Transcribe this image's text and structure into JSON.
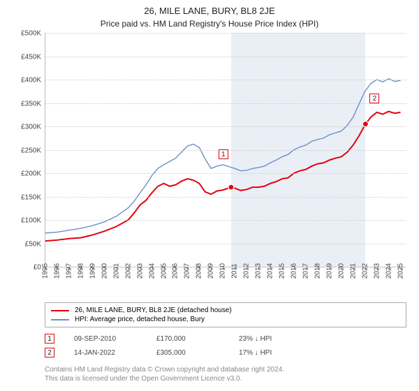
{
  "title": "26, MILE LANE, BURY, BL8 2JE",
  "subtitle": "Price paid vs. HM Land Registry's House Price Index (HPI)",
  "chart": {
    "type": "line",
    "x_min": 1995.0,
    "x_max": 2025.5,
    "y_min": 0,
    "y_max": 500000,
    "y_ticks": [
      0,
      50000,
      100000,
      150000,
      200000,
      250000,
      300000,
      350000,
      400000,
      450000,
      500000
    ],
    "y_tick_labels": [
      "£0",
      "£50K",
      "£100K",
      "£150K",
      "£200K",
      "£250K",
      "£300K",
      "£350K",
      "£400K",
      "£450K",
      "£500K"
    ],
    "x_ticks": [
      1995,
      1996,
      1997,
      1998,
      1999,
      2000,
      2001,
      2002,
      2003,
      2004,
      2005,
      2006,
      2007,
      2008,
      2009,
      2010,
      2011,
      2012,
      2013,
      2014,
      2015,
      2016,
      2017,
      2018,
      2019,
      2020,
      2021,
      2022,
      2023,
      2024,
      2025
    ],
    "shade_from": 2010.69,
    "shade_to": 2022.04,
    "grid_color": "#cccccc",
    "background_color": "#ffffff",
    "shade_color": "#e8edf5",
    "label_fontsize": 10,
    "series": {
      "price_paid": {
        "label": "26, MILE LANE, BURY, BL8 2JE (detached house)",
        "color": "#e3000f",
        "width": 2,
        "points": [
          [
            1995.0,
            55000
          ],
          [
            1996.0,
            57000
          ],
          [
            1997.0,
            60000
          ],
          [
            1998.0,
            62000
          ],
          [
            1999.0,
            68000
          ],
          [
            2000.0,
            76000
          ],
          [
            2001.0,
            86000
          ],
          [
            2002.0,
            100000
          ],
          [
            2002.5,
            115000
          ],
          [
            2003.0,
            132000
          ],
          [
            2003.5,
            142000
          ],
          [
            2004.0,
            158000
          ],
          [
            2004.5,
            172000
          ],
          [
            2005.0,
            178000
          ],
          [
            2005.5,
            172000
          ],
          [
            2006.0,
            175000
          ],
          [
            2006.5,
            183000
          ],
          [
            2007.0,
            188000
          ],
          [
            2007.5,
            185000
          ],
          [
            2008.0,
            178000
          ],
          [
            2008.5,
            160000
          ],
          [
            2009.0,
            155000
          ],
          [
            2009.5,
            162000
          ],
          [
            2010.0,
            164000
          ],
          [
            2010.69,
            170000
          ],
          [
            2011.0,
            168000
          ],
          [
            2011.5,
            163000
          ],
          [
            2012.0,
            165000
          ],
          [
            2012.5,
            170000
          ],
          [
            2013.0,
            170000
          ],
          [
            2013.5,
            172000
          ],
          [
            2014.0,
            178000
          ],
          [
            2014.5,
            182000
          ],
          [
            2015.0,
            188000
          ],
          [
            2015.5,
            190000
          ],
          [
            2016.0,
            200000
          ],
          [
            2016.5,
            205000
          ],
          [
            2017.0,
            208000
          ],
          [
            2017.5,
            215000
          ],
          [
            2018.0,
            220000
          ],
          [
            2018.5,
            222000
          ],
          [
            2019.0,
            228000
          ],
          [
            2019.5,
            232000
          ],
          [
            2020.0,
            235000
          ],
          [
            2020.5,
            245000
          ],
          [
            2021.0,
            260000
          ],
          [
            2021.5,
            280000
          ],
          [
            2022.04,
            305000
          ],
          [
            2022.5,
            320000
          ],
          [
            2023.0,
            330000
          ],
          [
            2023.5,
            326000
          ],
          [
            2024.0,
            332000
          ],
          [
            2024.5,
            328000
          ],
          [
            2025.0,
            330000
          ]
        ]
      },
      "hpi": {
        "label": "HPI: Average price, detached house, Bury",
        "color": "#6a8fc9",
        "width": 1.4,
        "points": [
          [
            1995.0,
            72000
          ],
          [
            1996.0,
            74000
          ],
          [
            1997.0,
            78000
          ],
          [
            1998.0,
            82000
          ],
          [
            1999.0,
            88000
          ],
          [
            2000.0,
            96000
          ],
          [
            2001.0,
            108000
          ],
          [
            2002.0,
            126000
          ],
          [
            2002.5,
            140000
          ],
          [
            2003.0,
            158000
          ],
          [
            2003.5,
            175000
          ],
          [
            2004.0,
            195000
          ],
          [
            2004.5,
            210000
          ],
          [
            2005.0,
            218000
          ],
          [
            2005.5,
            225000
          ],
          [
            2006.0,
            232000
          ],
          [
            2006.5,
            245000
          ],
          [
            2007.0,
            258000
          ],
          [
            2007.5,
            262000
          ],
          [
            2008.0,
            255000
          ],
          [
            2008.5,
            230000
          ],
          [
            2009.0,
            210000
          ],
          [
            2009.5,
            215000
          ],
          [
            2010.0,
            218000
          ],
          [
            2010.5,
            214000
          ],
          [
            2011.0,
            210000
          ],
          [
            2011.5,
            205000
          ],
          [
            2012.0,
            206000
          ],
          [
            2012.5,
            210000
          ],
          [
            2013.0,
            212000
          ],
          [
            2013.5,
            215000
          ],
          [
            2014.0,
            222000
          ],
          [
            2014.5,
            228000
          ],
          [
            2015.0,
            235000
          ],
          [
            2015.5,
            240000
          ],
          [
            2016.0,
            250000
          ],
          [
            2016.5,
            256000
          ],
          [
            2017.0,
            260000
          ],
          [
            2017.5,
            268000
          ],
          [
            2018.0,
            272000
          ],
          [
            2018.5,
            275000
          ],
          [
            2019.0,
            282000
          ],
          [
            2019.5,
            286000
          ],
          [
            2020.0,
            290000
          ],
          [
            2020.5,
            302000
          ],
          [
            2021.0,
            320000
          ],
          [
            2021.5,
            348000
          ],
          [
            2022.0,
            375000
          ],
          [
            2022.5,
            392000
          ],
          [
            2023.0,
            400000
          ],
          [
            2023.5,
            395000
          ],
          [
            2024.0,
            402000
          ],
          [
            2024.5,
            396000
          ],
          [
            2025.0,
            398000
          ]
        ]
      }
    },
    "markers": [
      {
        "id": "1",
        "x": 2010.69,
        "y": 170000
      },
      {
        "id": "2",
        "x": 2022.04,
        "y": 305000
      }
    ]
  },
  "sales": [
    {
      "id": "1",
      "date": "09-SEP-2010",
      "price": "£170,000",
      "delta": "23% ↓ HPI"
    },
    {
      "id": "2",
      "date": "14-JAN-2022",
      "price": "£305,000",
      "delta": "17% ↓ HPI"
    }
  ],
  "footnote_l1": "Contains HM Land Registry data © Crown copyright and database right 2024.",
  "footnote_l2": "This data is licensed under the Open Government Licence v3.0."
}
